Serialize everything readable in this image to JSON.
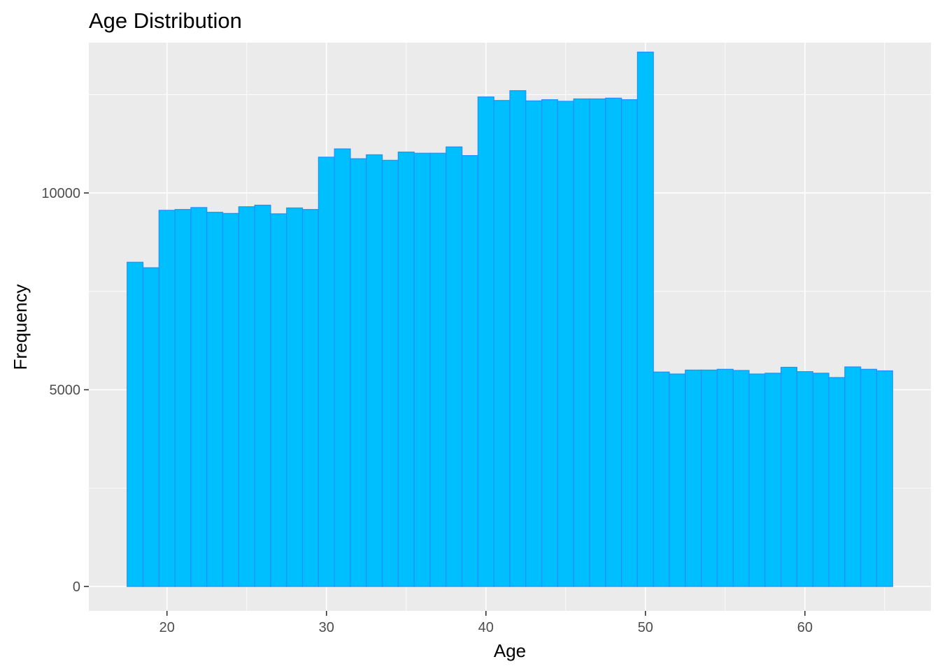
{
  "chart_data": {
    "type": "bar",
    "title": "Age Distribution",
    "xlabel": "Age",
    "ylabel": "Frequency",
    "bin_width": 1,
    "x_ticks": [
      20,
      30,
      40,
      50,
      60
    ],
    "y_ticks": [
      0,
      5000,
      10000
    ],
    "x_tick_labels": [
      "20",
      "30",
      "40",
      "50",
      "60"
    ],
    "y_tick_labels": [
      "0",
      "5000",
      "10000"
    ],
    "xlim": [
      15.1,
      67.9
    ],
    "ylim": [
      -620,
      13820
    ],
    "grid": true,
    "legend": "none",
    "colors": {
      "fill": "#00bfff",
      "outline": "#1e90ff",
      "panel": "#ebebeb",
      "grid": "#ffffff"
    },
    "categories": [
      18,
      19,
      20,
      21,
      22,
      23,
      24,
      25,
      26,
      27,
      28,
      29,
      30,
      31,
      32,
      33,
      34,
      35,
      36,
      37,
      38,
      39,
      40,
      41,
      42,
      43,
      44,
      45,
      46,
      47,
      48,
      49,
      50,
      51,
      52,
      53,
      54,
      55,
      56,
      57,
      58,
      59,
      60,
      61,
      62,
      63,
      64,
      65
    ],
    "values": [
      8240,
      8100,
      9560,
      9580,
      9630,
      9510,
      9480,
      9650,
      9690,
      9470,
      9620,
      9580,
      10910,
      11120,
      10870,
      10970,
      10830,
      11040,
      11010,
      11010,
      11170,
      10950,
      12440,
      12350,
      12600,
      12340,
      12370,
      12330,
      12390,
      12390,
      12410,
      12370,
      13580,
      5450,
      5400,
      5500,
      5500,
      5520,
      5490,
      5400,
      5420,
      5570,
      5460,
      5420,
      5310,
      5580,
      5520,
      5480
    ]
  }
}
